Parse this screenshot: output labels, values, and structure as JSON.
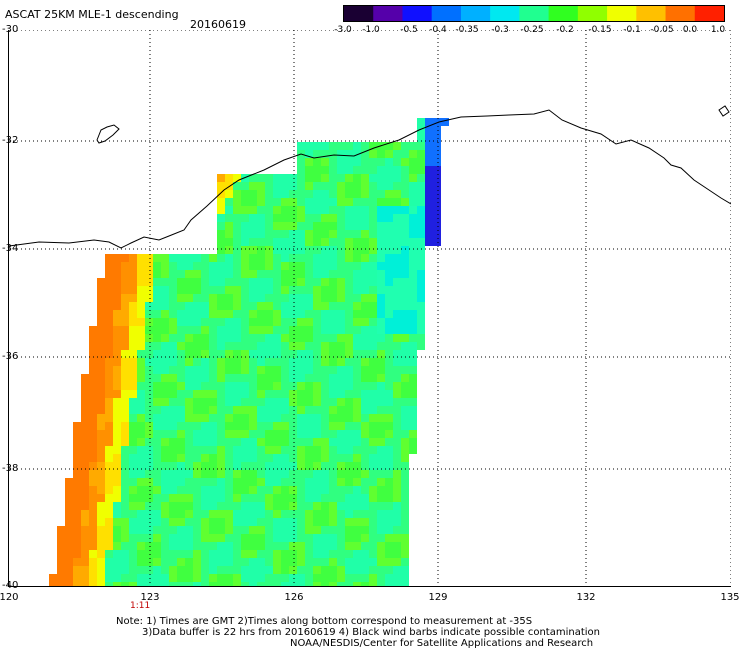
{
  "header": {
    "title": "ASCAT 25KM MLE-1 descending",
    "date": "20160619"
  },
  "colorbar": {
    "labels": [
      "-3.0",
      "-1.0",
      "-0.5",
      "-0.4",
      "-0.35",
      "-0.3",
      "-0.25",
      "-0.2",
      "-0.15",
      "-0.1",
      "-0.05",
      "0.0",
      "1.0"
    ],
    "colors": [
      "#1a0033",
      "#5500aa",
      "#1010ff",
      "#0070ff",
      "#00b0ff",
      "#00e8f0",
      "#20ff90",
      "#30ff20",
      "#90ff00",
      "#f0ff00",
      "#ffc000",
      "#ff7000",
      "#ff2000"
    ]
  },
  "axes": {
    "lat_labels": [
      "-30",
      "-32",
      "-34",
      "-36",
      "-38",
      "-40"
    ],
    "lon_labels": [
      "120",
      "123",
      "126",
      "129",
      "132",
      "135"
    ]
  },
  "time_marker": "1:11",
  "notes": {
    "line1": "Note: 1) Times are GMT 2)Times along bottom correspond to measurement at -35S",
    "line2": "3)Data buffer is 22 hrs from 20160619 4) Black wind barbs indicate possible contamination",
    "line3": "NOAA/NESDIS/Center for Satellite Applications and Research"
  },
  "palette": {
    "background": "#ffffff",
    "coast": "#000000"
  }
}
